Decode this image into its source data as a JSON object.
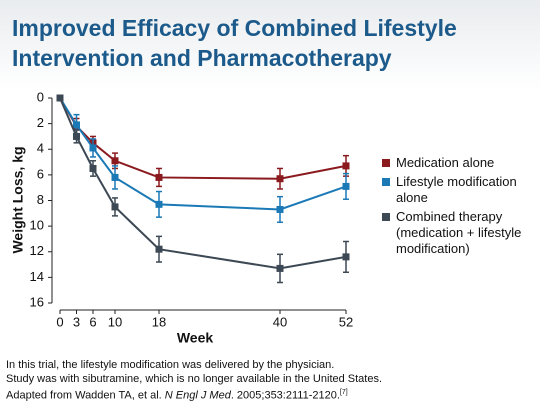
{
  "chart_data": {
    "type": "line",
    "title_lines": [
      "Improved Efficacy of Combined Lifestyle",
      "Intervention and Pharmacotherapy"
    ],
    "x_label": "Week",
    "y_label": "Weight Loss, kg",
    "x": [
      0,
      3,
      6,
      10,
      18,
      40,
      52
    ],
    "xlim": [
      0,
      52
    ],
    "xticks": [
      0,
      3,
      6,
      10,
      18,
      40,
      52
    ],
    "ylim": [
      0,
      16
    ],
    "yticks": [
      0,
      2,
      4,
      6,
      8,
      10,
      12,
      14,
      16
    ],
    "y_inverted": true,
    "legend": "right",
    "series": [
      {
        "name": "Medication alone",
        "color": "#8b1a1f",
        "values": [
          0,
          2.2,
          3.5,
          4.9,
          6.2,
          6.3,
          5.3
        ],
        "errors": [
          0,
          0.6,
          0.5,
          0.6,
          0.7,
          0.8,
          0.8
        ]
      },
      {
        "name": "Lifestyle modification alone",
        "color": "#1b79b6",
        "values": [
          0,
          2.1,
          3.9,
          6.2,
          8.3,
          8.7,
          6.9
        ],
        "errors": [
          0,
          0.8,
          0.7,
          0.9,
          1.0,
          1.0,
          1.0
        ]
      },
      {
        "name": "Combined therapy (medication + lifestyle modification)",
        "color": "#3c4853",
        "values": [
          0,
          3.0,
          5.5,
          8.5,
          11.8,
          13.3,
          12.4
        ],
        "errors": [
          0,
          0.5,
          0.6,
          0.7,
          1.0,
          1.1,
          1.2
        ]
      }
    ],
    "footnotes": [
      "In this trial, the lifestyle modification was delivered by the physician.",
      "Study was with sibutramine, which is no longer available in the United States."
    ],
    "citation": {
      "prefix": "Adapted from Wadden TA, et al. ",
      "journal": "N Engl J Med",
      "suffix": ". 2005;353:2111-2120.",
      "ref": "[7]"
    }
  }
}
